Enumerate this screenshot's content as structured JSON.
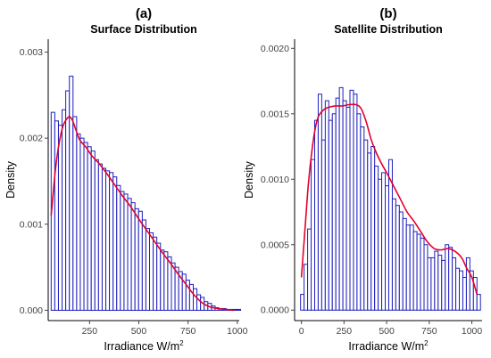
{
  "chart_data": [
    {
      "type": "bar",
      "panel_label": "(a)",
      "title": "Surface Distribution",
      "xlabel": "Irradiance W/m",
      "xlabel_sup": "2",
      "ylabel": "Density",
      "xlim": [
        40,
        1010
      ],
      "ylim": [
        -0.00012,
        0.00315
      ],
      "xticks": [
        250,
        500,
        750,
        1000
      ],
      "xtick_labels": [
        "250",
        "500",
        "750",
        "1000"
      ],
      "yticks": [
        0.0,
        0.001,
        0.002,
        0.003
      ],
      "ytick_labels": [
        "0.000",
        "0.001",
        "0.002",
        "0.003"
      ],
      "grid": false,
      "colors": {
        "bars": "#1f1fbf",
        "density_line": "#e4002b"
      },
      "bins": {
        "start": 55,
        "width": 18.5,
        "values": [
          0.0023,
          0.0022,
          0.00215,
          0.00233,
          0.00255,
          0.00272,
          0.00225,
          0.00205,
          0.002,
          0.00195,
          0.0019,
          0.00185,
          0.00175,
          0.0017,
          0.00165,
          0.00162,
          0.0016,
          0.00155,
          0.00145,
          0.00138,
          0.00135,
          0.0013,
          0.00125,
          0.00118,
          0.00115,
          0.00105,
          0.00095,
          0.0009,
          0.00085,
          0.00078,
          0.0007,
          0.00068,
          0.00062,
          0.00055,
          0.0005,
          0.00045,
          0.00042,
          0.00035,
          0.0003,
          0.00025,
          0.00018,
          0.00015,
          0.0001,
          8e-05,
          5e-05,
          3e-05,
          2e-05,
          2e-05,
          1e-05,
          1e-05,
          1e-05,
          1e-05
        ]
      },
      "density_curve": {
        "x": [
          55,
          80,
          110,
          140,
          160,
          180,
          200,
          230,
          260,
          300,
          340,
          380,
          420,
          460,
          500,
          540,
          580,
          620,
          660,
          700,
          740,
          780,
          820,
          860,
          900,
          940,
          980
        ],
        "y": [
          0.0011,
          0.0017,
          0.0021,
          0.00224,
          0.00222,
          0.0021,
          0.00198,
          0.0019,
          0.0018,
          0.0017,
          0.00158,
          0.00145,
          0.00132,
          0.0012,
          0.00106,
          0.00093,
          0.0008,
          0.00067,
          0.00055,
          0.00042,
          0.0003,
          0.00018,
          9e-05,
          4e-05,
          2e-05,
          1e-05,
          0.0
        ]
      }
    },
    {
      "type": "bar",
      "panel_label": "(b)",
      "title": "Satellite Distribution",
      "xlabel": "Irradiance W/m",
      "xlabel_sup": "2",
      "ylabel": "Density",
      "xlim": [
        -40,
        1060
      ],
      "ylim": [
        -8e-05,
        0.00207
      ],
      "xticks": [
        0,
        250,
        500,
        750,
        1000
      ],
      "xtick_labels": [
        "0",
        "250",
        "500",
        "750",
        "1000"
      ],
      "yticks": [
        0.0,
        0.0005,
        0.001,
        0.0015,
        0.002
      ],
      "ytick_labels": [
        "0.0000",
        "0.0005",
        "0.0010",
        "0.0015",
        "0.0020"
      ],
      "grid": false,
      "colors": {
        "bars": "#1f1fbf",
        "density_line": "#e4002b"
      },
      "bins": {
        "start": -5,
        "width": 20.7,
        "values": [
          0.00012,
          0.00035,
          0.00062,
          0.00115,
          0.00145,
          0.00165,
          0.0013,
          0.0016,
          0.00145,
          0.0015,
          0.00162,
          0.0017,
          0.0016,
          0.00155,
          0.00168,
          0.00165,
          0.0015,
          0.0014,
          0.0013,
          0.0012,
          0.00125,
          0.0011,
          0.001,
          0.00105,
          0.00095,
          0.00115,
          0.00085,
          0.0008,
          0.00075,
          0.0007,
          0.00065,
          0.00065,
          0.0006,
          0.00058,
          0.00055,
          0.0005,
          0.0004,
          0.0004,
          0.00045,
          0.00042,
          0.00038,
          0.0005,
          0.00048,
          0.0004,
          0.00032,
          0.0003,
          0.00025,
          0.0004,
          0.0003,
          0.00025,
          0.00012
        ]
      },
      "density_curve": {
        "x": [
          0,
          20,
          40,
          60,
          80,
          100,
          130,
          160,
          200,
          240,
          280,
          320,
          350,
          380,
          410,
          440,
          470,
          500,
          540,
          580,
          620,
          660,
          700,
          740,
          780,
          820,
          860,
          900,
          940,
          970,
          1000,
          1030
        ],
        "y": [
          0.00025,
          0.0006,
          0.00095,
          0.0012,
          0.00138,
          0.00148,
          0.00153,
          0.00155,
          0.00156,
          0.00156,
          0.00157,
          0.00157,
          0.00154,
          0.00144,
          0.0013,
          0.0012,
          0.00112,
          0.00105,
          0.00095,
          0.00085,
          0.00075,
          0.00068,
          0.0006,
          0.00052,
          0.00047,
          0.00046,
          0.00047,
          0.00045,
          0.0004,
          0.00032,
          0.00025,
          0.00012
        ]
      }
    }
  ]
}
